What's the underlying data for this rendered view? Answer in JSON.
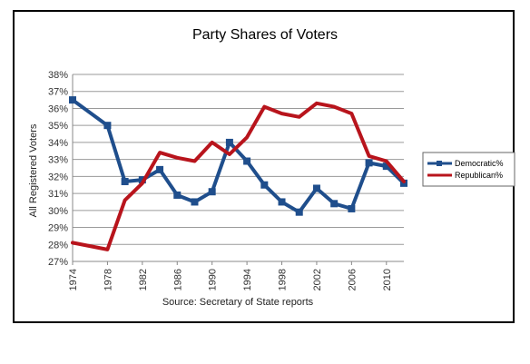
{
  "chart_data": {
    "type": "line",
    "title": "Party Shares of Voters",
    "xlabel": "Source: Secretary of State reports",
    "ylabel": "All Registered Voters",
    "x": [
      1974,
      1978,
      1980,
      1982,
      1984,
      1986,
      1988,
      1990,
      1992,
      1994,
      1996,
      1998,
      2000,
      2002,
      2004,
      2006,
      2008,
      2010,
      2012
    ],
    "xlim": [
      1974,
      2012
    ],
    "x_ticks": [
      "1974",
      "1978",
      "1982",
      "1986",
      "1990",
      "1994",
      "1998",
      "2002",
      "2006",
      "2010"
    ],
    "ylim": [
      27,
      38
    ],
    "y_ticks": [
      "27%",
      "28%",
      "29%",
      "30%",
      "31%",
      "32%",
      "33%",
      "34%",
      "35%",
      "36%",
      "37%",
      "38%"
    ],
    "grid": "horizontal",
    "legend_position": "right",
    "series": [
      {
        "name": "Democratic%",
        "color": "#1f4e8c",
        "marker": "square",
        "values": [
          36.5,
          35.0,
          31.7,
          31.8,
          32.4,
          30.9,
          30.5,
          31.1,
          34.0,
          32.9,
          31.5,
          30.5,
          29.9,
          31.3,
          30.4,
          30.1,
          32.8,
          32.6,
          31.6
        ]
      },
      {
        "name": "Republican%",
        "color": "#b8141c",
        "marker": "none",
        "values": [
          28.1,
          27.7,
          30.6,
          31.6,
          33.4,
          33.1,
          32.9,
          34.0,
          33.3,
          34.3,
          36.1,
          35.7,
          35.5,
          36.3,
          36.1,
          35.7,
          33.2,
          32.9,
          31.7
        ]
      }
    ]
  }
}
